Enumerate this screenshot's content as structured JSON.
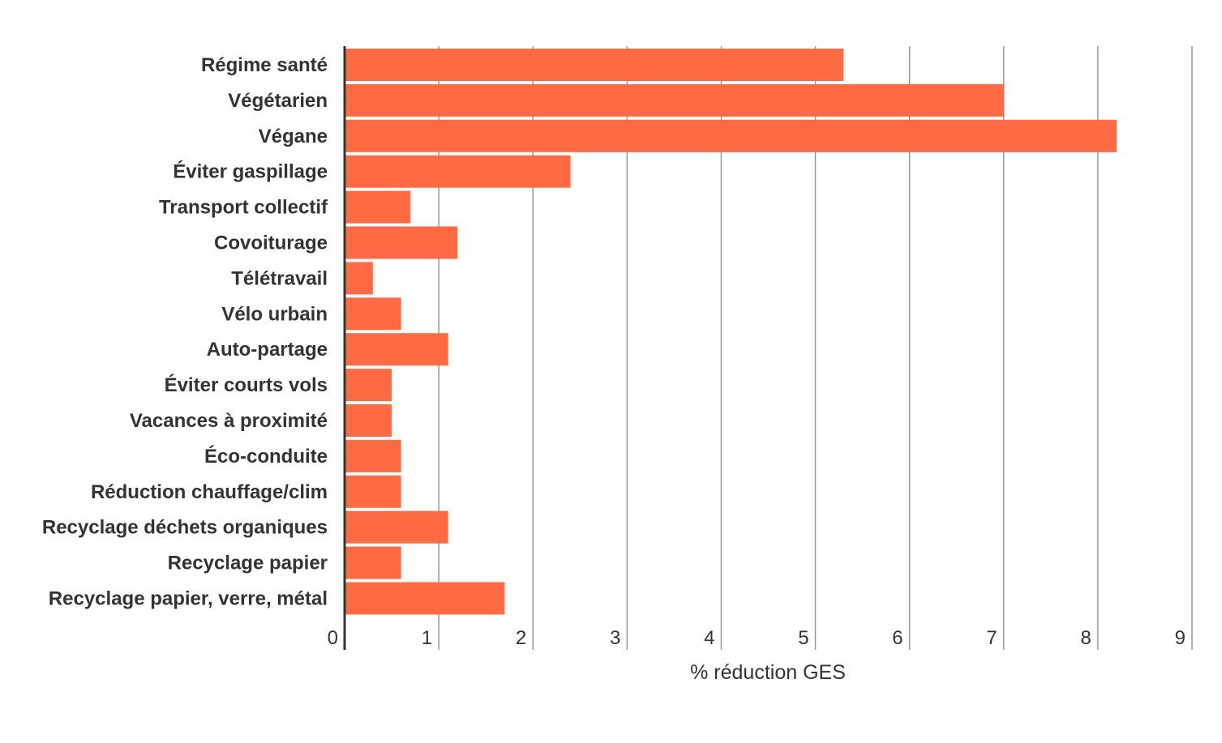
{
  "chart_data": {
    "type": "bar",
    "orientation": "horizontal",
    "categories": [
      "Régime santé",
      "Végétarien",
      "Végane",
      "Éviter gaspillage",
      "Transport collectif",
      "Covoiturage",
      "Télétravail",
      "Vélo urbain",
      "Auto-partage",
      "Éviter courts vols",
      "Vacances à proximité",
      "Éco-conduite",
      "Réduction chauffage/clim",
      "Recyclage déchets organiques",
      "Recyclage papier",
      "Recyclage papier, verre, métal"
    ],
    "values": [
      5.3,
      7.0,
      8.2,
      2.4,
      0.7,
      1.2,
      0.3,
      0.6,
      1.1,
      0.5,
      0.5,
      0.6,
      0.6,
      1.1,
      0.6,
      1.7
    ],
    "x_ticks": [
      "0",
      "1",
      "2",
      "3",
      "4",
      "5",
      "6",
      "7",
      "8",
      "9"
    ],
    "xlim": [
      0,
      9
    ],
    "xlabel": "% réduction GES",
    "ylabel": "",
    "title": "",
    "grid": true,
    "legend": "none",
    "bar_color": "#ff6a42",
    "grid_color": "#999999",
    "axis_color": "#333333",
    "text_color": "#333333"
  }
}
